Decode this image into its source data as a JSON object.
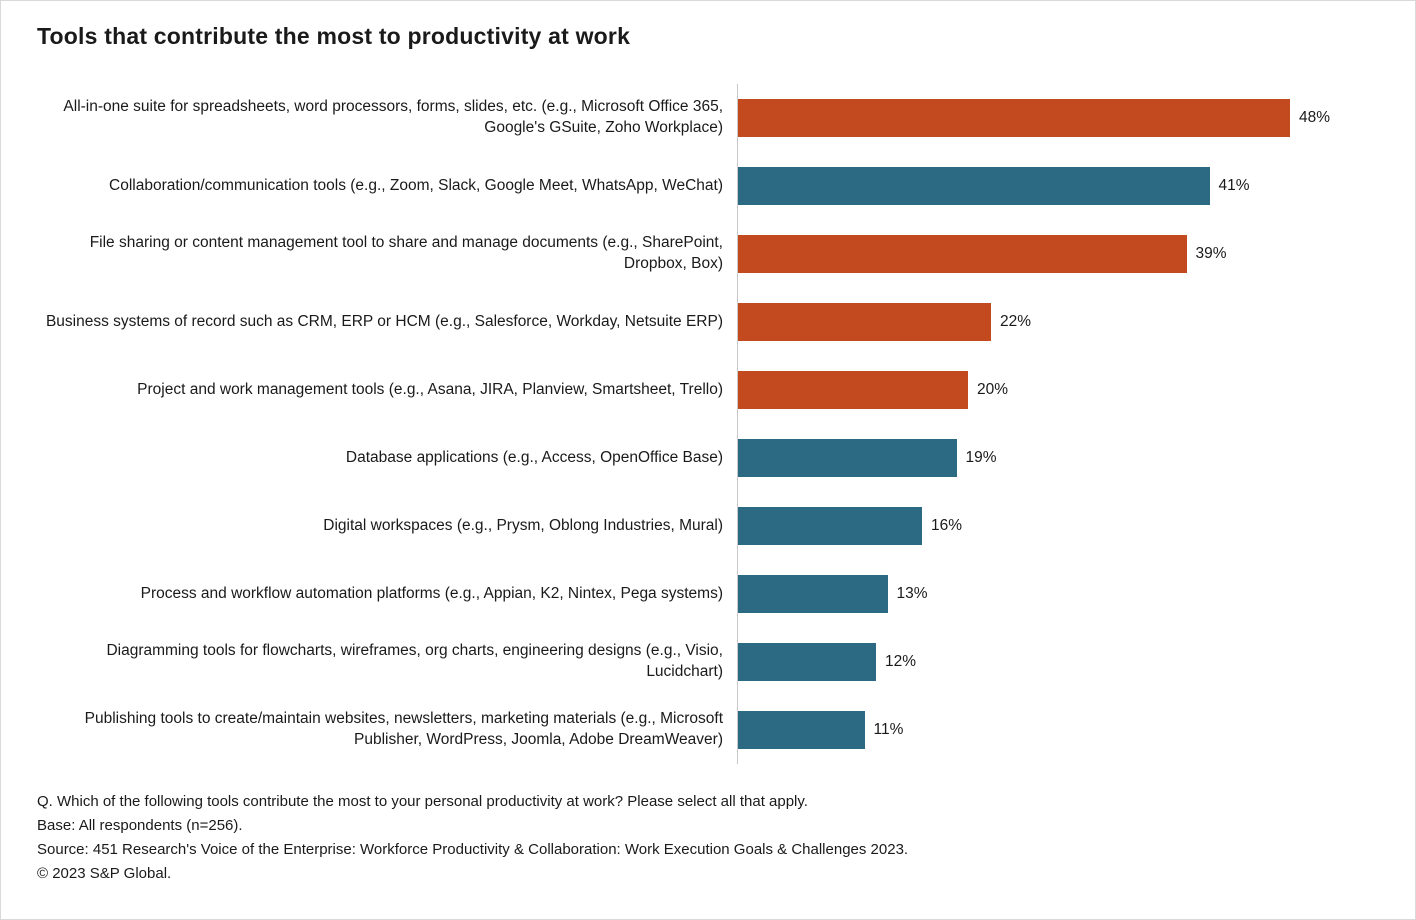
{
  "title": "Tools that contribute the most to productivity at work",
  "chart_data": {
    "type": "bar",
    "orientation": "horizontal",
    "title": "Tools that contribute the most to productivity at work",
    "xlabel": "",
    "ylabel": "",
    "xlim": [
      0,
      50
    ],
    "grid": false,
    "legend": "none",
    "value_suffix": "%",
    "categories": [
      "All-in-one suite for spreadsheets, word processors, forms, slides, etc. (e.g., Microsoft Office 365, Google's GSuite, Zoho Workplace)",
      "Collaboration/communication tools (e.g., Zoom, Slack, Google Meet, WhatsApp, WeChat)",
      "File sharing or content management tool to share and manage documents (e.g., SharePoint, Dropbox, Box)",
      "Business systems of record such as CRM, ERP or HCM (e.g., Salesforce, Workday, Netsuite ERP)",
      "Project and work management tools (e.g., Asana, JIRA, Planview, Smartsheet, Trello)",
      "Database applications (e.g., Access, OpenOffice Base)",
      "Digital workspaces (e.g., Prysm, Oblong Industries, Mural)",
      "Process and workflow automation platforms (e.g., Appian, K2, Nintex, Pega systems)",
      "Diagramming tools for flowcharts, wireframes, org charts, engineering designs (e.g., Visio, Lucidchart)",
      "Publishing tools to create/maintain websites, newsletters, marketing materials (e.g., Microsoft Publisher, WordPress, Joomla, Adobe DreamWeaver)"
    ],
    "values": [
      48,
      41,
      39,
      22,
      20,
      19,
      16,
      13,
      12,
      11
    ],
    "bar_colors": [
      "#c3491f",
      "#2b6a82",
      "#c3491f",
      "#c3491f",
      "#c3491f",
      "#2b6a82",
      "#2b6a82",
      "#2b6a82",
      "#2b6a82",
      "#2b6a82"
    ],
    "palette": {
      "orange": "#c3491f",
      "teal": "#2b6a82",
      "axis_line": "#c9c9c9"
    }
  },
  "footer": {
    "lines": [
      "Q. Which of the following tools contribute the most to your personal productivity at work? Please select all that apply.",
      "Base: All respondents (n=256).",
      "Source: 451 Research's Voice of the Enterprise: Workforce Productivity & Collaboration: Work Execution Goals & Challenges 2023.",
      "© 2023 S&P Global."
    ]
  }
}
